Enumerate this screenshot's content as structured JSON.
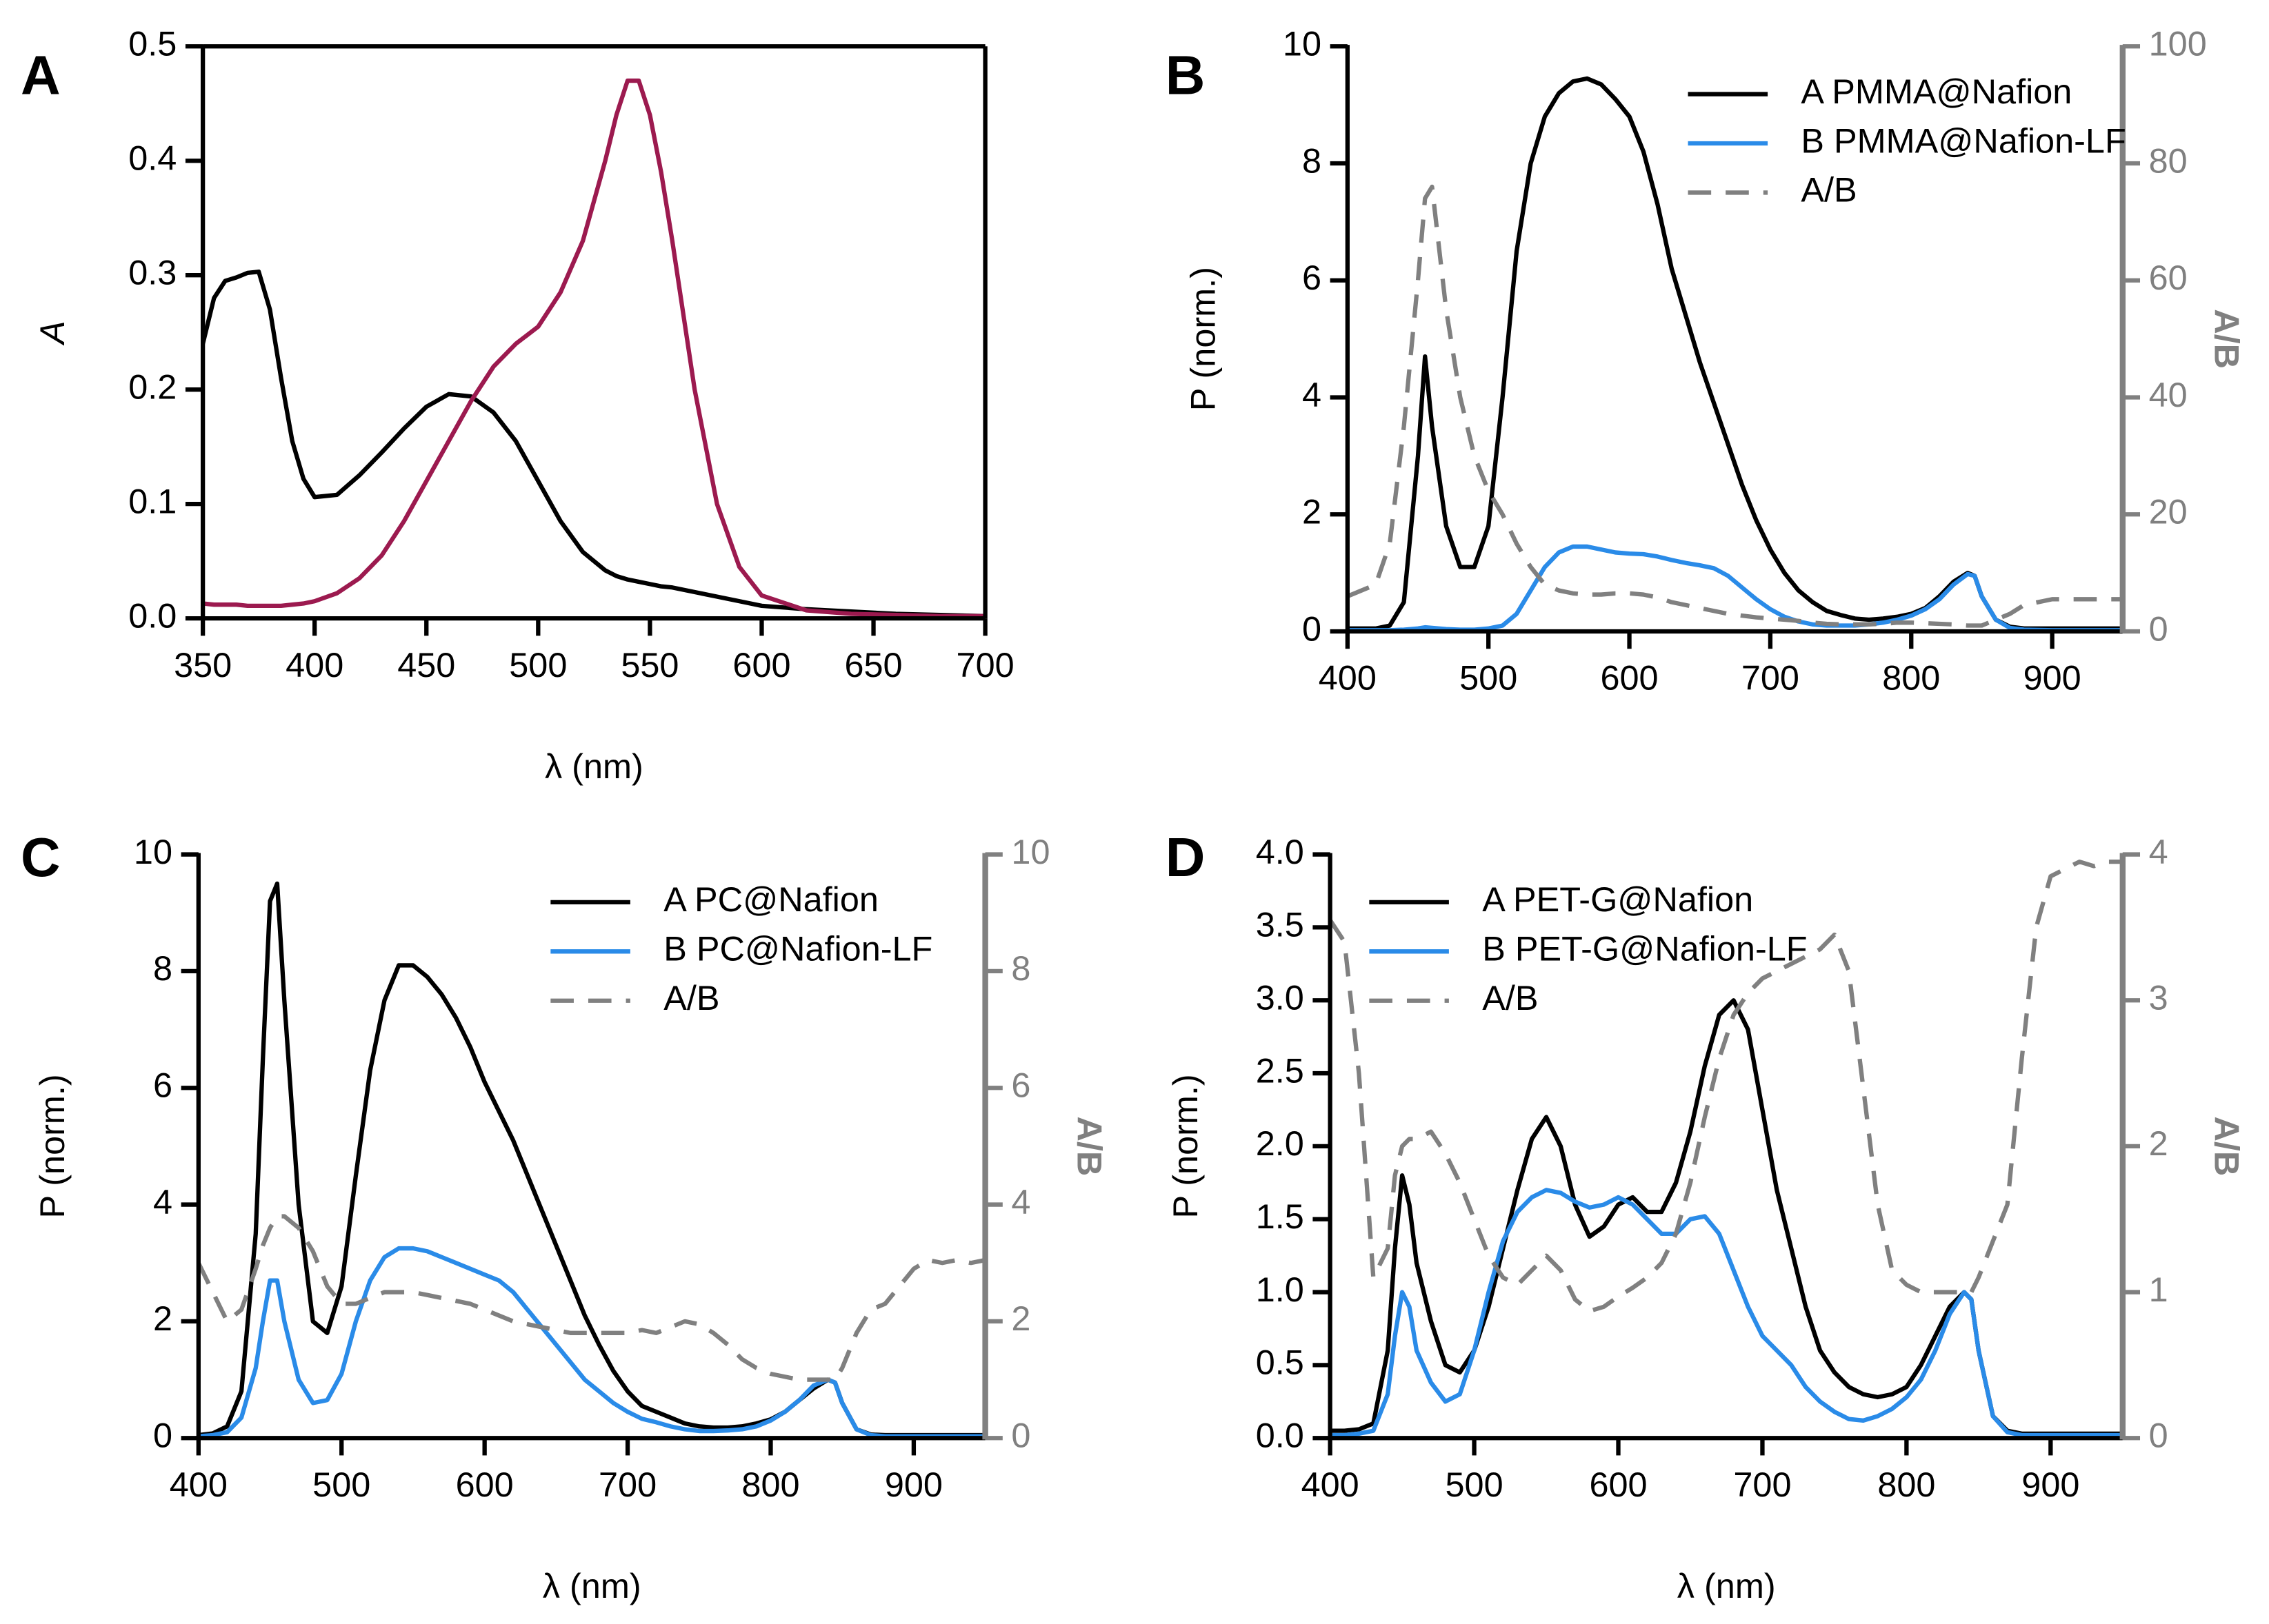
{
  "chart_data": [
    {
      "type": "line",
      "panel_label": "A",
      "xlabel": "λ (nm)",
      "ylabel": "A",
      "frame": true,
      "xlim": [
        350,
        700
      ],
      "xticks": [
        350,
        400,
        450,
        500,
        550,
        600,
        650,
        700
      ],
      "ylim": [
        0,
        0.5
      ],
      "yticks": [
        {
          "value": 0,
          "label": "0.0"
        },
        {
          "value": 0.1,
          "label": "0.1"
        },
        {
          "value": 0.2,
          "label": "0.2"
        },
        {
          "value": 0.3,
          "label": "0.3"
        },
        {
          "value": 0.4,
          "label": "0.4"
        },
        {
          "value": 0.5,
          "label": "0.5"
        }
      ],
      "x": [
        350,
        355,
        360,
        365,
        370,
        375,
        380,
        385,
        390,
        395,
        400,
        410,
        420,
        430,
        440,
        450,
        460,
        470,
        480,
        490,
        500,
        510,
        520,
        530,
        535,
        540,
        545,
        550,
        555,
        560,
        570,
        580,
        590,
        600,
        620,
        640,
        660,
        680,
        700
      ],
      "series": [
        {
          "color": "#000000",
          "values": [
            0.24,
            0.28,
            0.295,
            0.298,
            0.302,
            0.303,
            0.27,
            0.21,
            0.155,
            0.122,
            0.106,
            0.108,
            0.125,
            0.145,
            0.166,
            0.185,
            0.196,
            0.194,
            0.18,
            0.155,
            0.12,
            0.085,
            0.058,
            0.042,
            0.037,
            0.034,
            0.032,
            0.03,
            0.028,
            0.027,
            0.023,
            0.019,
            0.015,
            0.011,
            0.008,
            0.006,
            0.004,
            0.003,
            0.002
          ]
        },
        {
          "color": "#9c1a4f",
          "values": [
            0.013,
            0.012,
            0.012,
            0.012,
            0.011,
            0.011,
            0.011,
            0.011,
            0.012,
            0.013,
            0.015,
            0.022,
            0.035,
            0.055,
            0.085,
            0.12,
            0.155,
            0.19,
            0.22,
            0.24,
            0.255,
            0.285,
            0.33,
            0.4,
            0.44,
            0.47,
            0.47,
            0.44,
            0.39,
            0.33,
            0.2,
            0.1,
            0.045,
            0.02,
            0.007,
            0.004,
            0.003,
            0.002,
            0.002
          ]
        }
      ]
    },
    {
      "type": "line",
      "panel_label": "B",
      "ylabel": "P (norm.)",
      "y2label": "A/B",
      "legend": "upper right",
      "xlim": [
        400,
        950
      ],
      "xticks": [
        400,
        500,
        600,
        700,
        800,
        900
      ],
      "ylim": [
        0,
        10
      ],
      "yticks": [
        0,
        2,
        4,
        6,
        8,
        10
      ],
      "y2lim": [
        0,
        100
      ],
      "y2ticks": [
        0,
        20,
        40,
        60,
        80,
        100
      ],
      "x": [
        400,
        420,
        430,
        440,
        450,
        455,
        460,
        470,
        480,
        490,
        500,
        510,
        520,
        530,
        540,
        550,
        560,
        570,
        580,
        590,
        600,
        610,
        620,
        630,
        640,
        650,
        660,
        670,
        680,
        690,
        700,
        710,
        720,
        730,
        740,
        750,
        760,
        770,
        780,
        790,
        800,
        810,
        820,
        830,
        840,
        845,
        850,
        860,
        870,
        880,
        900,
        950
      ],
      "series": [
        {
          "name": "A PMMA@Nafion",
          "color": "#000000",
          "values": [
            0.05,
            0.05,
            0.1,
            0.5,
            3.0,
            4.7,
            3.5,
            1.8,
            1.1,
            1.1,
            1.8,
            4.0,
            6.5,
            8.0,
            8.8,
            9.2,
            9.4,
            9.45,
            9.35,
            9.1,
            8.8,
            8.2,
            7.3,
            6.2,
            5.4,
            4.6,
            3.9,
            3.2,
            2.5,
            1.9,
            1.4,
            1.0,
            0.7,
            0.5,
            0.35,
            0.28,
            0.22,
            0.2,
            0.22,
            0.25,
            0.3,
            0.4,
            0.6,
            0.85,
            1.0,
            0.95,
            0.6,
            0.2,
            0.08,
            0.05,
            0.05,
            0.05
          ]
        },
        {
          "name": "B PMMA@Nafion-LF",
          "color": "#2a8be8",
          "values": [
            0.02,
            0.02,
            0.02,
            0.03,
            0.05,
            0.07,
            0.06,
            0.04,
            0.03,
            0.03,
            0.05,
            0.1,
            0.3,
            0.7,
            1.1,
            1.35,
            1.45,
            1.45,
            1.4,
            1.35,
            1.33,
            1.32,
            1.28,
            1.22,
            1.17,
            1.13,
            1.08,
            0.95,
            0.75,
            0.55,
            0.38,
            0.25,
            0.17,
            0.12,
            0.1,
            0.1,
            0.1,
            0.12,
            0.15,
            0.2,
            0.27,
            0.38,
            0.55,
            0.8,
            0.98,
            0.95,
            0.6,
            0.2,
            0.06,
            0.03,
            0.02,
            0.02
          ]
        },
        {
          "name": "A/B",
          "color": "#808080",
          "dashed": true,
          "axis": "y2",
          "values": [
            6,
            8,
            15,
            35,
            60,
            74,
            76,
            55,
            40,
            30,
            24,
            20,
            15,
            11,
            8,
            7,
            6.5,
            6.3,
            6.3,
            6.5,
            6.5,
            6.3,
            5.8,
            5,
            4.5,
            4,
            3.5,
            3,
            2.7,
            2.4,
            2.2,
            2,
            1.8,
            1.5,
            1.3,
            1.2,
            1.2,
            1.2,
            1.3,
            1.5,
            1.5,
            1.4,
            1.3,
            1.2,
            1.0,
            1.0,
            1.0,
            2,
            3,
            4.5,
            5.5,
            5.5
          ]
        }
      ]
    },
    {
      "type": "line",
      "panel_label": "C",
      "xlabel": "λ (nm)",
      "ylabel": "P (norm.)",
      "y2label": "A/B",
      "legend": "upper right",
      "xlim": [
        400,
        950
      ],
      "xticks": [
        400,
        500,
        600,
        700,
        800,
        900
      ],
      "ylim": [
        0,
        10
      ],
      "yticks": [
        0,
        2,
        4,
        6,
        8,
        10
      ],
      "y2lim": [
        0,
        10
      ],
      "y2ticks": [
        0,
        2,
        4,
        6,
        8,
        10
      ],
      "x": [
        400,
        410,
        420,
        430,
        440,
        445,
        450,
        455,
        460,
        470,
        480,
        490,
        500,
        510,
        520,
        530,
        540,
        550,
        560,
        570,
        580,
        590,
        600,
        610,
        620,
        630,
        640,
        650,
        660,
        670,
        680,
        690,
        700,
        710,
        720,
        730,
        740,
        750,
        760,
        770,
        780,
        790,
        800,
        810,
        820,
        830,
        840,
        845,
        850,
        860,
        870,
        880,
        890,
        900,
        910,
        920,
        930,
        940,
        950
      ],
      "series": [
        {
          "name": "A PC@Nafion",
          "color": "#000000",
          "values": [
            0.05,
            0.08,
            0.2,
            0.8,
            3.5,
            6.5,
            9.2,
            9.5,
            7.5,
            4.0,
            2.0,
            1.8,
            2.6,
            4.5,
            6.3,
            7.5,
            8.1,
            8.1,
            7.9,
            7.6,
            7.2,
            6.7,
            6.1,
            5.6,
            5.1,
            4.5,
            3.9,
            3.3,
            2.7,
            2.1,
            1.6,
            1.15,
            0.8,
            0.55,
            0.45,
            0.35,
            0.25,
            0.2,
            0.18,
            0.18,
            0.2,
            0.25,
            0.32,
            0.45,
            0.65,
            0.85,
            1.0,
            0.95,
            0.6,
            0.15,
            0.06,
            0.05,
            0.05,
            0.05,
            0.05,
            0.05,
            0.05,
            0.05,
            0.05
          ]
        },
        {
          "name": "B PC@Nafion-LF",
          "color": "#2a8be8",
          "values": [
            0.03,
            0.05,
            0.1,
            0.35,
            1.2,
            2.0,
            2.7,
            2.7,
            2.0,
            1.0,
            0.6,
            0.65,
            1.1,
            2.0,
            2.7,
            3.1,
            3.25,
            3.25,
            3.2,
            3.1,
            3.0,
            2.9,
            2.8,
            2.7,
            2.5,
            2.2,
            1.9,
            1.6,
            1.3,
            1.0,
            0.8,
            0.6,
            0.45,
            0.33,
            0.27,
            0.2,
            0.15,
            0.12,
            0.12,
            0.13,
            0.15,
            0.2,
            0.3,
            0.45,
            0.65,
            0.9,
            1.0,
            0.95,
            0.6,
            0.15,
            0.05,
            0.03,
            0.03,
            0.03,
            0.03,
            0.03,
            0.03,
            0.03,
            0.03
          ]
        },
        {
          "name": "A/B",
          "color": "#808080",
          "dashed": true,
          "axis": "y2",
          "values": [
            3.0,
            2.5,
            2.0,
            2.2,
            2.9,
            3.3,
            3.6,
            3.8,
            3.8,
            3.6,
            3.2,
            2.6,
            2.3,
            2.3,
            2.4,
            2.5,
            2.5,
            2.5,
            2.45,
            2.4,
            2.35,
            2.3,
            2.2,
            2.1,
            2.0,
            1.95,
            1.9,
            1.85,
            1.8,
            1.8,
            1.8,
            1.8,
            1.8,
            1.85,
            1.8,
            1.9,
            2.0,
            1.95,
            1.8,
            1.6,
            1.35,
            1.2,
            1.1,
            1.05,
            1.0,
            1.0,
            1.0,
            1.0,
            1.2,
            1.8,
            2.2,
            2.3,
            2.6,
            2.9,
            3.05,
            3.0,
            3.05,
            3.0,
            3.05
          ]
        }
      ]
    },
    {
      "type": "line",
      "panel_label": "D",
      "xlabel": "λ (nm)",
      "ylabel": "P (norm.)",
      "y2label": "A/B",
      "legend": "upper left",
      "xlim": [
        400,
        950
      ],
      "xticks": [
        400,
        500,
        600,
        700,
        800,
        900
      ],
      "ylim": [
        0,
        4
      ],
      "yticks": [
        {
          "value": 0,
          "label": "0.0"
        },
        {
          "value": 0.5,
          "label": "0.5"
        },
        {
          "value": 1,
          "label": "1.0"
        },
        {
          "value": 1.5,
          "label": "1.5"
        },
        {
          "value": 2,
          "label": "2.0"
        },
        {
          "value": 2.5,
          "label": "2.5"
        },
        {
          "value": 3,
          "label": "3.0"
        },
        {
          "value": 3.5,
          "label": "3.5"
        },
        {
          "value": 4,
          "label": "4.0"
        }
      ],
      "y2lim": [
        0,
        4
      ],
      "y2ticks": [
        0,
        1,
        2,
        3,
        4
      ],
      "x": [
        400,
        410,
        420,
        430,
        440,
        445,
        450,
        455,
        460,
        470,
        480,
        490,
        500,
        510,
        520,
        530,
        540,
        550,
        560,
        570,
        580,
        590,
        600,
        610,
        620,
        630,
        640,
        650,
        660,
        670,
        680,
        690,
        700,
        710,
        720,
        730,
        740,
        750,
        760,
        770,
        780,
        790,
        800,
        810,
        820,
        830,
        840,
        845,
        850,
        860,
        870,
        880,
        890,
        900,
        910,
        920,
        930,
        940,
        950
      ],
      "series": [
        {
          "name": "A PET-G@Nafion",
          "color": "#000000",
          "values": [
            0.05,
            0.05,
            0.06,
            0.1,
            0.6,
            1.3,
            1.8,
            1.6,
            1.2,
            0.8,
            0.5,
            0.45,
            0.6,
            0.9,
            1.3,
            1.7,
            2.05,
            2.2,
            2.0,
            1.6,
            1.38,
            1.45,
            1.6,
            1.65,
            1.55,
            1.55,
            1.75,
            2.1,
            2.55,
            2.9,
            3.0,
            2.8,
            2.25,
            1.7,
            1.3,
            0.9,
            0.6,
            0.45,
            0.35,
            0.3,
            0.28,
            0.3,
            0.35,
            0.5,
            0.7,
            0.9,
            1.0,
            0.95,
            0.6,
            0.15,
            0.05,
            0.03,
            0.03,
            0.03,
            0.03,
            0.03,
            0.03,
            0.03,
            0.03
          ]
        },
        {
          "name": "B PET-G@Nafion-LF",
          "color": "#2a8be8",
          "values": [
            0.02,
            0.02,
            0.03,
            0.05,
            0.3,
            0.7,
            1.0,
            0.9,
            0.6,
            0.38,
            0.25,
            0.3,
            0.6,
            1.0,
            1.35,
            1.55,
            1.65,
            1.7,
            1.68,
            1.62,
            1.58,
            1.6,
            1.65,
            1.6,
            1.5,
            1.4,
            1.4,
            1.5,
            1.52,
            1.4,
            1.15,
            0.9,
            0.7,
            0.6,
            0.5,
            0.35,
            0.25,
            0.18,
            0.13,
            0.12,
            0.15,
            0.2,
            0.28,
            0.4,
            0.6,
            0.85,
            1.0,
            0.95,
            0.6,
            0.15,
            0.04,
            0.02,
            0.02,
            0.02,
            0.02,
            0.02,
            0.02,
            0.02,
            0.02
          ]
        },
        {
          "name": "A/B",
          "color": "#808080",
          "dashed": true,
          "axis": "y2",
          "values": [
            3.55,
            3.4,
            2.5,
            1.1,
            1.3,
            1.8,
            2.0,
            2.05,
            2.05,
            2.1,
            1.95,
            1.75,
            1.5,
            1.25,
            1.1,
            1.05,
            1.15,
            1.25,
            1.15,
            0.95,
            0.87,
            0.9,
            0.97,
            1.03,
            1.1,
            1.2,
            1.4,
            1.75,
            2.2,
            2.6,
            2.9,
            3.05,
            3.15,
            3.2,
            3.25,
            3.3,
            3.35,
            3.45,
            3.2,
            2.4,
            1.6,
            1.15,
            1.05,
            1.0,
            1.0,
            1.0,
            1.0,
            1.0,
            1.1,
            1.35,
            1.6,
            2.6,
            3.5,
            3.85,
            3.9,
            3.95,
            3.92,
            3.95,
            3.95
          ]
        }
      ]
    }
  ]
}
